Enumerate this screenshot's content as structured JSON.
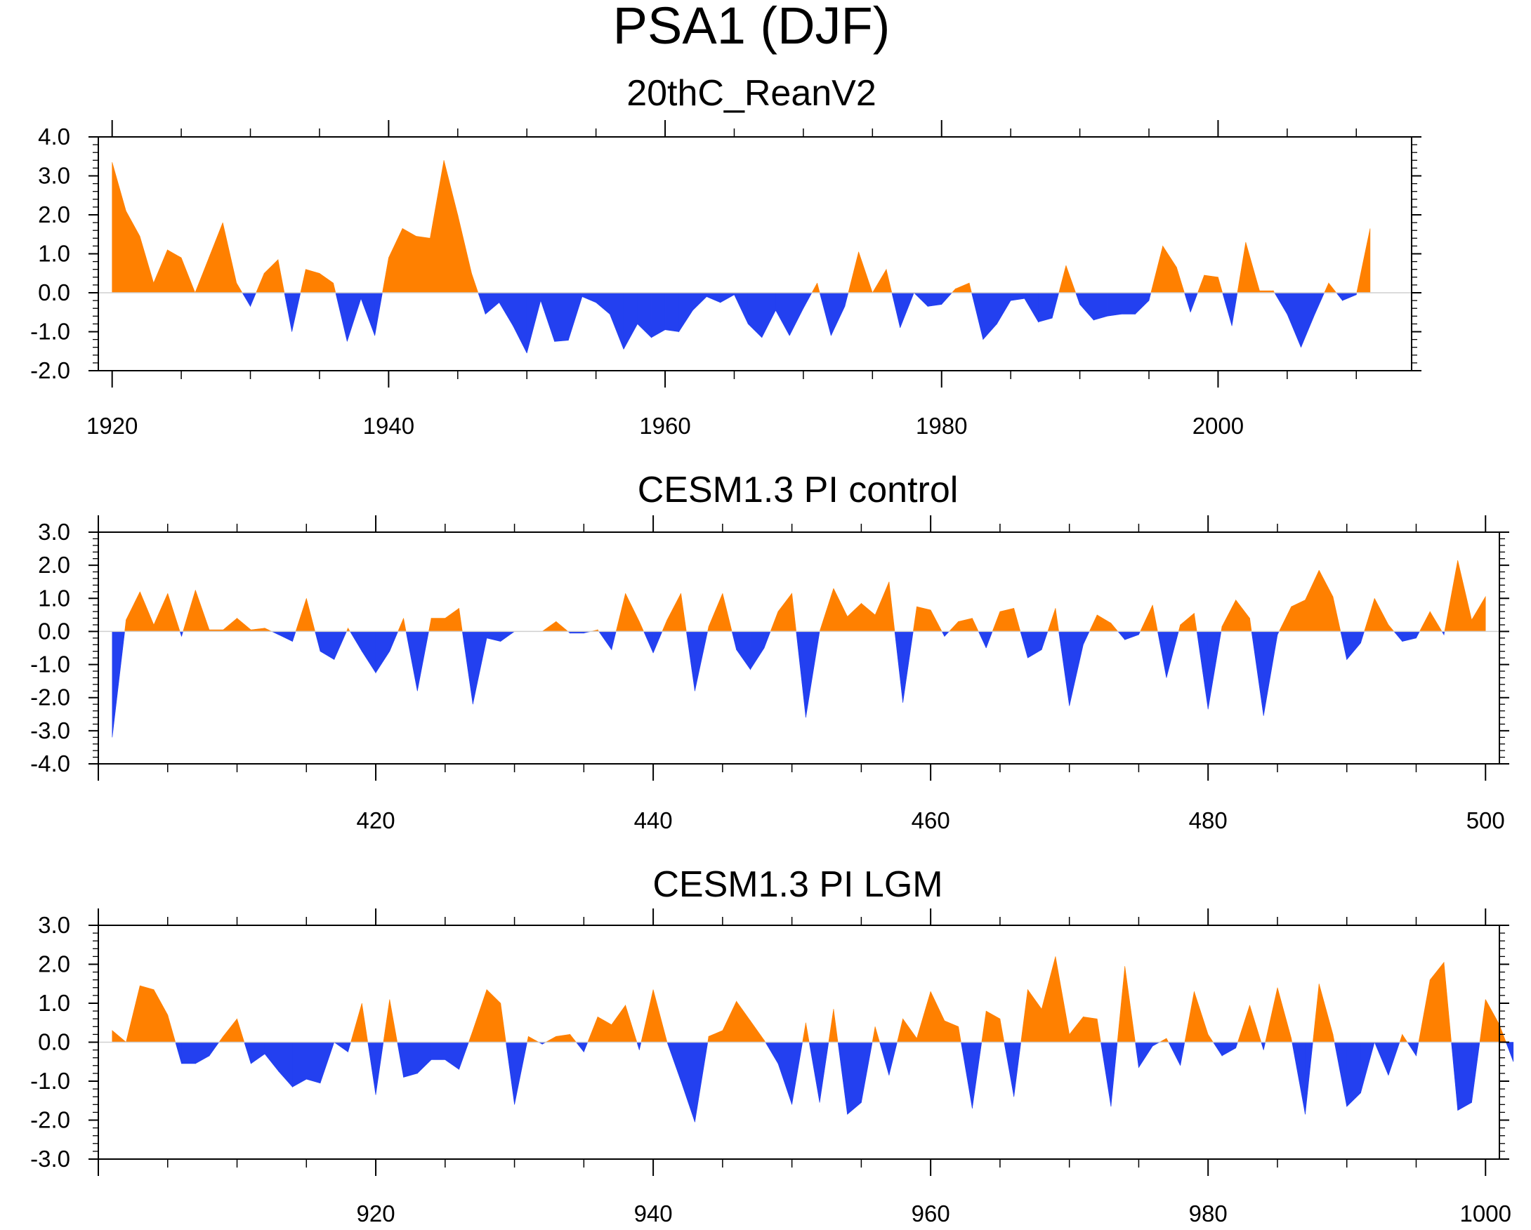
{
  "figure": {
    "title": "PSA1 (DJF)"
  },
  "colors": {
    "positive": "#ff8000",
    "negative": "#2340f0",
    "axis": "#000000"
  },
  "chart_data": [
    {
      "type": "area",
      "title": "20thC_ReanV2",
      "xlabel": "",
      "ylabel": "",
      "xlim": [
        1919,
        2014
      ],
      "ylim": [
        -2.0,
        4.0
      ],
      "yticks": [
        -2.0,
        -1.0,
        0.0,
        1.0,
        2.0,
        3.0,
        4.0
      ],
      "ytick_labels": [
        "-2.0",
        "-1.0",
        "0.0",
        "1.0",
        "2.0",
        "3.0",
        "4.0"
      ],
      "xticks": [
        1920,
        1940,
        1960,
        1980,
        2000
      ],
      "xtick_labels": [
        "1920",
        "1940",
        "1960",
        "1980",
        "2000"
      ],
      "x_start": 1920,
      "values": [
        3.35,
        2.1,
        1.45,
        0.25,
        1.1,
        0.9,
        0.0,
        0.9,
        1.8,
        0.25,
        -0.35,
        0.5,
        0.85,
        -1.0,
        0.6,
        0.5,
        0.25,
        -1.25,
        -0.15,
        -1.1,
        0.9,
        1.65,
        1.45,
        1.4,
        3.4,
        2.0,
        0.5,
        -0.55,
        -0.25,
        -0.85,
        -1.55,
        -0.2,
        -1.25,
        -1.22,
        -0.1,
        -0.25,
        -0.55,
        -1.45,
        -0.8,
        -1.15,
        -0.95,
        -1.0,
        -0.45,
        -0.1,
        -0.25,
        -0.05,
        -0.8,
        -1.15,
        -0.45,
        -1.1,
        -0.4,
        0.25,
        -1.1,
        -0.35,
        1.05,
        0.0,
        0.6,
        -0.9,
        0.0,
        -0.35,
        -0.3,
        0.1,
        0.25,
        -1.2,
        -0.8,
        -0.2,
        -0.15,
        -0.75,
        -0.65,
        0.7,
        -0.3,
        -0.7,
        -0.6,
        -0.55,
        -0.55,
        -0.2,
        1.2,
        0.65,
        -0.5,
        0.45,
        0.4,
        -0.85,
        1.3,
        0.05,
        0.05,
        -0.55,
        -1.4,
        -0.55,
        0.25,
        -0.2,
        -0.05,
        1.65
      ]
    },
    {
      "type": "area",
      "title": "CESM1.3 PI control",
      "xlabel": "",
      "ylabel": "",
      "xlim": [
        400,
        501
      ],
      "ylim": [
        -4.0,
        3.0
      ],
      "yticks": [
        -4.0,
        -3.0,
        -2.0,
        -1.0,
        0.0,
        1.0,
        2.0,
        3.0
      ],
      "ytick_labels": [
        "-4.0",
        "-3.0",
        "-2.0",
        "-1.0",
        "0.0",
        "1.0",
        "2.0",
        "3.0"
      ],
      "xticks": [
        420,
        440,
        460,
        480,
        500
      ],
      "xtick_labels": [
        "420",
        "440",
        "460",
        "480",
        "500"
      ],
      "x_start": 401,
      "values": [
        -3.2,
        0.35,
        1.2,
        0.2,
        1.15,
        -0.15,
        1.25,
        0.05,
        0.05,
        0.4,
        0.05,
        0.1,
        -0.1,
        -0.3,
        1.0,
        -0.6,
        -0.85,
        0.1,
        -0.6,
        -1.25,
        -0.6,
        0.4,
        -1.8,
        0.4,
        0.4,
        0.7,
        -2.2,
        -0.2,
        -0.3,
        0.0,
        0.0,
        0.0,
        0.3,
        -0.05,
        -0.05,
        0.05,
        -0.55,
        1.15,
        0.3,
        -0.65,
        0.35,
        1.15,
        -1.8,
        0.15,
        1.15,
        -0.55,
        -1.15,
        -0.5,
        0.6,
        1.15,
        -2.6,
        0.0,
        1.3,
        0.45,
        0.85,
        0.5,
        1.5,
        -2.15,
        0.75,
        0.65,
        -0.15,
        0.3,
        0.4,
        -0.5,
        0.6,
        0.7,
        -0.8,
        -0.55,
        0.7,
        -2.25,
        -0.4,
        0.5,
        0.25,
        -0.25,
        -0.1,
        0.8,
        -1.4,
        0.2,
        0.55,
        -2.35,
        0.15,
        0.95,
        0.4,
        -2.55,
        -0.1,
        0.75,
        0.95,
        1.85,
        1.05,
        -0.85,
        -0.35,
        1.0,
        0.2,
        -0.3,
        -0.2,
        0.6,
        -0.1,
        2.15,
        0.35,
        1.05
      ]
    },
    {
      "type": "area",
      "title": "CESM1.3 PI LGM",
      "xlabel": "",
      "ylabel": "",
      "xlim": [
        900,
        1001
      ],
      "ylim": [
        -3.0,
        3.0
      ],
      "yticks": [
        -3.0,
        -2.0,
        -1.0,
        0.0,
        1.0,
        2.0,
        3.0
      ],
      "ytick_labels": [
        "-3.0",
        "-2.0",
        "-1.0",
        "0.0",
        "1.0",
        "2.0",
        "3.0"
      ],
      "xticks": [
        920,
        940,
        960,
        980,
        1000
      ],
      "xtick_labels": [
        "920",
        "940",
        "960",
        "980",
        "1000"
      ],
      "x_start": 901,
      "values": [
        0.3,
        0.0,
        1.45,
        1.35,
        0.7,
        -0.55,
        -0.55,
        -0.35,
        0.15,
        0.6,
        -0.55,
        -0.3,
        -0.75,
        -1.15,
        -0.95,
        -1.05,
        0.0,
        -0.25,
        1.0,
        -1.35,
        1.1,
        -0.9,
        -0.8,
        -0.45,
        -0.45,
        -0.7,
        0.3,
        1.35,
        1.0,
        -1.6,
        0.15,
        -0.05,
        0.15,
        0.2,
        -0.25,
        0.65,
        0.45,
        0.95,
        -0.2,
        1.35,
        0.0,
        -1.0,
        -2.05,
        0.15,
        0.3,
        1.05,
        0.55,
        0.05,
        -0.55,
        -1.6,
        0.5,
        -1.55,
        0.85,
        -1.85,
        -1.55,
        0.4,
        -0.85,
        0.6,
        0.1,
        1.3,
        0.55,
        0.4,
        -1.7,
        0.8,
        0.6,
        -1.4,
        1.35,
        0.85,
        2.2,
        0.2,
        0.65,
        0.6,
        -1.65,
        1.95,
        -0.65,
        -0.1,
        0.1,
        -0.6,
        1.3,
        0.2,
        -0.35,
        -0.15,
        0.95,
        -0.2,
        1.4,
        0.1,
        -1.85,
        1.5,
        0.2,
        -1.65,
        -1.3,
        0.0,
        -0.85,
        0.2,
        -0.35,
        1.6,
        2.05,
        -1.75,
        -1.55,
        1.1,
        0.45,
        -0.5
      ]
    }
  ]
}
